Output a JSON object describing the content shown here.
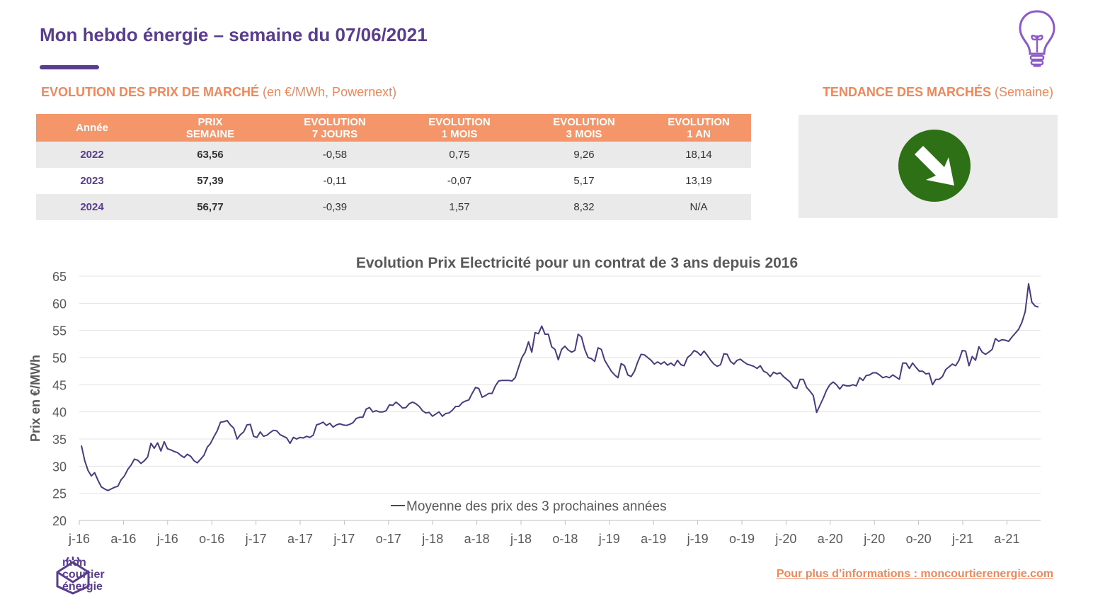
{
  "header": {
    "title": "Mon hebdo énergie – semaine du 07/06/2021"
  },
  "section_left": {
    "title_bold": "EVOLUTION DES PRIX DE MARCHÉ",
    "title_rest": " (en €/MWh, Powernext)"
  },
  "section_right": {
    "title_bold": "TENDANCE DES MARCHÉS",
    "title_rest": " (Semaine)"
  },
  "table": {
    "headers": [
      [
        "Année"
      ],
      [
        "PRIX",
        "SEMAINE"
      ],
      [
        "EVOLUTION",
        "7 JOURS"
      ],
      [
        "EVOLUTION",
        "1 MOIS"
      ],
      [
        "EVOLUTION",
        "3 MOIS"
      ],
      [
        "EVOLUTION",
        "1 AN"
      ]
    ],
    "rows": [
      [
        "2022",
        "63,56",
        "-0,58",
        "0,75",
        "9,26",
        "18,14"
      ],
      [
        "2023",
        "57,39",
        "-0,11",
        "-0,07",
        "5,17",
        "13,19"
      ],
      [
        "2024",
        "56,77",
        "-0,39",
        "1,57",
        "8,32",
        "N/A"
      ]
    ]
  },
  "trend": {
    "direction": "down",
    "color": "#2e7016",
    "icon": "arrow-down-right-icon"
  },
  "colors": {
    "brand": "#5a3d8e",
    "accent": "#f0875a",
    "table_header": "#f4956a",
    "line": "#4a3a7e"
  },
  "chart_data": {
    "type": "line",
    "title": "Evolution Prix Electricité pour un contrat de 3 ans depuis 2016",
    "xlabel": "",
    "ylabel": "Prix en €/MWh",
    "ylim": [
      20,
      65
    ],
    "yticks": [
      20,
      25,
      30,
      35,
      40,
      45,
      50,
      55,
      60,
      65
    ],
    "xticks": [
      "j-16",
      "a-16",
      "j-16",
      "o-16",
      "j-17",
      "a-17",
      "j-17",
      "o-17",
      "j-18",
      "a-18",
      "j-18",
      "o-18",
      "j-19",
      "a-19",
      "j-19",
      "o-19",
      "j-20",
      "a-20",
      "j-20",
      "o-20",
      "j-21",
      "a-21"
    ],
    "legend_position": "bottom",
    "grid": true,
    "series": [
      {
        "name": "Moyenne des prix des 3 prochaines années",
        "color": "#4a3a7e",
        "values": [
          33.8,
          31.0,
          29.2,
          28.2,
          28.8,
          27.4,
          26.2,
          25.8,
          25.5,
          25.8,
          26.1,
          26.3,
          27.5,
          28.2,
          29.4,
          30.2,
          31.3,
          31.1,
          30.5,
          31.0,
          31.7,
          34.2,
          33.3,
          34.3,
          32.8,
          34.5,
          33.2,
          33.0,
          32.7,
          32.5,
          32.0,
          31.6,
          32.2,
          31.8,
          31.0,
          30.6,
          31.3,
          32.0,
          33.5,
          34.2,
          35.4,
          36.5,
          38.1,
          38.2,
          38.4,
          37.6,
          37.0,
          35.0,
          35.8,
          36.3,
          37.6,
          37.7,
          35.5,
          35.3,
          36.3,
          35.5,
          35.7,
          36.2,
          36.6,
          36.5,
          35.8,
          35.5,
          35.2,
          34.2,
          35.3,
          35.0,
          35.3,
          35.2,
          35.5,
          35.3,
          35.7,
          37.6,
          37.8,
          38.1,
          37.5,
          37.9,
          37.2,
          37.6,
          37.8,
          37.6,
          37.5,
          37.7,
          38.0,
          38.8,
          39.0,
          39.0,
          40.5,
          40.8,
          40.0,
          40.2,
          40.0,
          40.0,
          40.2,
          41.3,
          41.2,
          41.8,
          41.3,
          40.7,
          40.8,
          41.5,
          41.8,
          41.5,
          41.0,
          40.2,
          39.8,
          39.9,
          39.2,
          39.6,
          40.0,
          39.2,
          39.7,
          39.8,
          40.3,
          41.0,
          41.0,
          41.7,
          42.0,
          42.2,
          43.4,
          44.5,
          44.3,
          42.7,
          43.0,
          43.4,
          43.4,
          44.8,
          45.7,
          45.8,
          45.8,
          45.8,
          45.7,
          46.3,
          48.2,
          50.0,
          51.0,
          52.9,
          51.0,
          54.6,
          54.4,
          55.8,
          54.3,
          54.3,
          52.0,
          51.5,
          49.6,
          51.5,
          52.1,
          51.4,
          51.0,
          51.3,
          54.3,
          53.8,
          51.5,
          50.0,
          49.8,
          49.3,
          51.8,
          51.5,
          49.5,
          48.5,
          47.5,
          46.8,
          46.3,
          48.9,
          48.5,
          46.8,
          46.5,
          47.5,
          49.2,
          50.6,
          50.5,
          50.0,
          49.5,
          48.8,
          49.2,
          48.8,
          49.2,
          48.6,
          49.0,
          48.5,
          49.5,
          48.7,
          48.5,
          50.0,
          50.5,
          51.3,
          51.0,
          50.4,
          51.2,
          50.4,
          49.5,
          48.8,
          48.4,
          48.7,
          50.7,
          50.6,
          49.3,
          48.8,
          49.5,
          49.7,
          49.2,
          48.8,
          48.6,
          48.4,
          48.0,
          48.5,
          47.5,
          47.2,
          46.5,
          47.3,
          47.0,
          47.2,
          46.5,
          46.0,
          45.5,
          44.5,
          44.3,
          46.0,
          46.0,
          44.5,
          43.8,
          43.0,
          39.9,
          41.2,
          42.5,
          44.0,
          45.0,
          45.5,
          45.0,
          44.2,
          45.0,
          44.8,
          44.8,
          45.0,
          44.8,
          46.3,
          45.8,
          46.7,
          46.8,
          47.2,
          47.2,
          46.8,
          46.3,
          46.5,
          46.3,
          46.8,
          46.4,
          46.0,
          49.0,
          49.0,
          48.0,
          49.0,
          48.2,
          47.5,
          47.5,
          47.0,
          47.1,
          45.0,
          46.0,
          46.0,
          46.5,
          47.8,
          48.3,
          48.8,
          48.5,
          49.5,
          51.3,
          51.2,
          48.5,
          50.2,
          49.5,
          52.0,
          51.0,
          50.6,
          51.0,
          51.5,
          53.5,
          53.0,
          53.3,
          53.2,
          53.0,
          53.8,
          54.5,
          55.2,
          56.5,
          58.5,
          63.6,
          60.2,
          59.5,
          59.3
        ]
      }
    ]
  },
  "logo": {
    "line1": "mon",
    "line2": "courtier",
    "line3": "énergie"
  },
  "footer": {
    "link_text": "Pour plus d’informations : moncourtierenergie.com"
  }
}
